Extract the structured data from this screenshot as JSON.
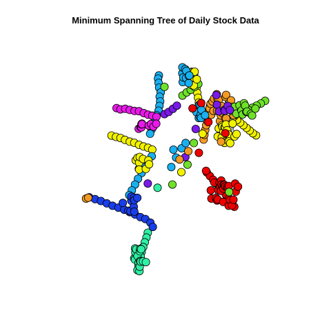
{
  "chart_data": {
    "type": "network",
    "title": "Minimum Spanning Tree of Daily Stock Data",
    "xlim": [
      0,
      100
    ],
    "ylim": [
      0,
      100
    ],
    "edge_color": "#000000",
    "node_stroke": "#000000",
    "palette": {
      "red": "#ee0000",
      "orange": "#f39a22",
      "yellow": "#f2f200",
      "green": "#6fe12a",
      "mint": "#2ff0a4",
      "cyan": "#1ab0f0",
      "blue": "#1a3ee8",
      "purple": "#7a1ae8",
      "magenta": "#e81ae8"
    },
    "branches": [
      {
        "name": "",
        "color": "cyan",
        "points": [
          [
            47.5,
            16
          ],
          [
            47.2,
            17.2
          ],
          [
            47.4,
            18.8
          ],
          [
            47.6,
            20.6
          ],
          [
            48.2,
            22.4
          ],
          [
            47.8,
            24
          ],
          [
            48,
            25.8
          ],
          [
            47.7,
            27.5
          ],
          [
            47.4,
            29.3
          ],
          [
            46.6,
            31
          ],
          [
            46,
            32.8
          ],
          [
            45.4,
            34.6
          ],
          [
            44.8,
            36.4
          ],
          [
            44.2,
            38
          ]
        ]
      },
      {
        "name": "",
        "color": "magenta",
        "points": [
          [
            31.5,
            28.3
          ],
          [
            33,
            28.8
          ],
          [
            34.8,
            28.6
          ],
          [
            36.5,
            29
          ],
          [
            38.3,
            29.4
          ],
          [
            40,
            29.5
          ],
          [
            41.8,
            30.2
          ],
          [
            43.4,
            30.8
          ],
          [
            45,
            31.2
          ],
          [
            46.6,
            31.6
          ]
        ]
      },
      {
        "name": "",
        "color": "purple",
        "points": [
          [
            49.6,
            30.6
          ],
          [
            51.2,
            29.8
          ],
          [
            52.8,
            28.6
          ],
          [
            54.3,
            27.4
          ]
        ]
      },
      {
        "name": "",
        "color": "yellow",
        "points": [
          [
            29.6,
            38.7
          ],
          [
            31.3,
            39.2
          ],
          [
            33,
            39.6
          ],
          [
            34.7,
            40.3
          ],
          [
            36.5,
            41
          ],
          [
            38.2,
            41.4
          ],
          [
            40,
            42.2
          ],
          [
            41.7,
            42.8
          ],
          [
            43.4,
            43.3
          ],
          [
            45,
            44
          ]
        ]
      },
      {
        "name": "",
        "color": "cyan",
        "points": [
          [
            44.8,
            46.5
          ],
          [
            43.5,
            48.6
          ],
          [
            42.2,
            50.7
          ],
          [
            41,
            52.8
          ],
          [
            39.6,
            55
          ],
          [
            38.5,
            57.2
          ],
          [
            37.3,
            59.4
          ],
          [
            36.3,
            61.2
          ]
        ]
      },
      {
        "name": "",
        "color": "blue",
        "points": [
          [
            21.2,
            62
          ],
          [
            23.4,
            62.7
          ],
          [
            25.6,
            63.4
          ],
          [
            27.8,
            64.3
          ],
          [
            30,
            65.2
          ],
          [
            32.2,
            65.9
          ],
          [
            34.4,
            66.7
          ],
          [
            36.5,
            67.6
          ],
          [
            38.5,
            68.5
          ],
          [
            40.5,
            69.5
          ],
          [
            42.4,
            70.2
          ],
          [
            44.3,
            71.6
          ],
          [
            45.2,
            73.2
          ]
        ]
      },
      {
        "name": "",
        "color": "mint",
        "points": [
          [
            43.3,
            75.4
          ],
          [
            42.8,
            77.2
          ],
          [
            42.2,
            79
          ],
          [
            41.6,
            80.8
          ],
          [
            41,
            82.6
          ],
          [
            40.6,
            84.3
          ],
          [
            40.2,
            86
          ],
          [
            39.8,
            87.7
          ],
          [
            39.4,
            89.5
          ]
        ]
      },
      {
        "name": "",
        "color": "orange",
        "points": [
          [
            20,
            62.5
          ],
          [
            20.8,
            62.2
          ]
        ]
      },
      {
        "name": "",
        "color": "red",
        "points": [
          [
            65.6,
            52.6
          ],
          [
            66.8,
            54
          ],
          [
            68,
            55.4
          ],
          [
            69.2,
            56.8
          ],
          [
            70.4,
            58.2
          ],
          [
            71.6,
            59.6
          ],
          [
            72.8,
            61
          ],
          [
            74,
            62.4
          ],
          [
            75.2,
            63.8
          ],
          [
            76,
            65.6
          ]
        ]
      },
      {
        "name": "",
        "color": "yellow",
        "points": [
          [
            84.2,
            38.6
          ],
          [
            83,
            37.8
          ],
          [
            81.8,
            36.8
          ],
          [
            80.6,
            35.8
          ],
          [
            79.4,
            34.8
          ],
          [
            78.2,
            33.8
          ],
          [
            77,
            32.8
          ],
          [
            75.8,
            31.6
          ]
        ]
      },
      {
        "name": "",
        "color": "green",
        "points": [
          [
            87.6,
            25.6
          ],
          [
            86,
            26.6
          ],
          [
            84.4,
            27.4
          ],
          [
            82.8,
            28.2
          ],
          [
            81.2,
            29
          ],
          [
            79.6,
            29.8
          ],
          [
            78,
            30.2
          ],
          [
            76.4,
            30.9
          ]
        ]
      },
      {
        "name": "",
        "color": "orange",
        "points": [
          [
            64.4,
            40.2
          ],
          [
            64.7,
            38.4
          ],
          [
            65,
            36.6
          ],
          [
            65.4,
            34.8
          ],
          [
            65.7,
            33
          ],
          [
            66.1,
            31.2
          ],
          [
            66.5,
            29.4
          ],
          [
            66.8,
            27.6
          ]
        ]
      },
      {
        "name": "",
        "color": "yellow",
        "points": [
          [
            60.8,
            15.4
          ],
          [
            61.1,
            17.2
          ],
          [
            61.4,
            19
          ],
          [
            61.7,
            20.8
          ],
          [
            62,
            22.6
          ],
          [
            62.3,
            24.4
          ],
          [
            62.6,
            26.2
          ],
          [
            62.9,
            28
          ]
        ]
      },
      {
        "name": "",
        "color": "green",
        "points": [
          [
            56.4,
            23.6
          ],
          [
            58,
            22.4
          ],
          [
            59.5,
            21.4
          ],
          [
            61,
            20.3
          ],
          [
            62.4,
            19.2
          ]
        ]
      }
    ],
    "clusters": [
      {
        "name": "",
        "color": "red",
        "center": [
          72.5,
          60.5
        ],
        "spread": [
          6,
          5.5
        ],
        "count": 28
      },
      {
        "name": "",
        "color": "orange",
        "center": [
          71.5,
          28
        ],
        "spread": [
          5,
          6
        ],
        "count": 24
      },
      {
        "name": "",
        "color": "yellow",
        "center": [
          74,
          38
        ],
        "spread": [
          5,
          4
        ],
        "count": 18
      },
      {
        "name": "",
        "color": "green",
        "center": [
          79,
          29
        ],
        "spread": [
          6,
          3
        ],
        "count": 14
      },
      {
        "name": "",
        "color": "purple",
        "center": [
          72,
          28
        ],
        "spread": [
          3,
          2
        ],
        "count": 6
      },
      {
        "name": "",
        "color": "cyan",
        "center": [
          63.5,
          29.5
        ],
        "spread": [
          3,
          3
        ],
        "count": 10
      },
      {
        "name": "",
        "color": "magenta",
        "center": [
          43,
          35
        ],
        "spread": [
          4,
          2
        ],
        "count": 10
      },
      {
        "name": "",
        "color": "yellow",
        "center": [
          41,
          49.2
        ],
        "spread": [
          3.5,
          2.5
        ],
        "count": 10
      },
      {
        "name": "",
        "color": "blue",
        "center": [
          37.6,
          64.6
        ],
        "spread": [
          4,
          3
        ],
        "count": 10
      },
      {
        "name": "",
        "color": "mint",
        "center": [
          40.2,
          85
        ],
        "spread": [
          2.5,
          5.5
        ],
        "count": 16
      },
      {
        "name": "",
        "color": "yellow",
        "center": [
          60.6,
          18
        ],
        "spread": [
          1.5,
          4
        ],
        "count": 8
      },
      {
        "name": "",
        "color": "cyan",
        "center": [
          56.8,
          16.5
        ],
        "spread": [
          2.5,
          4
        ],
        "count": 10
      }
    ],
    "singles": [
      {
        "color": "red",
        "xy": [
          63.5,
          26.4
        ]
      },
      {
        "color": "red",
        "xy": [
          60.2,
          28.4
        ]
      },
      {
        "color": "red",
        "xy": [
          72.6,
          37.8
        ]
      },
      {
        "color": "red",
        "xy": [
          66.2,
          33.6
        ]
      },
      {
        "color": "red",
        "xy": [
          62.6,
          45.2
        ]
      },
      {
        "color": "red",
        "xy": [
          65.3,
          52
        ]
      },
      {
        "color": "green",
        "xy": [
          58.3,
          49.7
        ]
      },
      {
        "color": "green",
        "xy": [
          60.7,
          41.5
        ]
      },
      {
        "color": "green",
        "xy": [
          74,
          60
        ]
      },
      {
        "color": "green",
        "xy": [
          49.6,
          20.3
        ]
      },
      {
        "color": "purple",
        "xy": [
          43.3,
          56.8
        ]
      },
      {
        "color": "purple",
        "xy": [
          57.5,
          46.8
        ]
      },
      {
        "color": "purple",
        "xy": [
          61.4,
          36.2
        ]
      },
      {
        "color": "purple",
        "xy": [
          69.2,
          23.4
        ]
      },
      {
        "color": "cyan",
        "xy": [
          54,
          47
        ]
      },
      {
        "color": "cyan",
        "xy": [
          53,
          44
        ]
      },
      {
        "color": "cyan",
        "xy": [
          56.1,
          43.5
        ]
      },
      {
        "color": "cyan",
        "xy": [
          52.2,
          50.6
        ]
      },
      {
        "color": "cyan",
        "xy": [
          57.6,
          41.5
        ]
      },
      {
        "color": "yellow",
        "xy": [
          56,
          52.5
        ]
      },
      {
        "color": "yellow",
        "xy": [
          64,
          38
        ]
      },
      {
        "color": "green",
        "xy": [
          52.6,
          57.2
        ]
      },
      {
        "color": "mint",
        "xy": [
          47,
          58.4
        ]
      },
      {
        "color": "orange",
        "xy": [
          55.3,
          47.7
        ]
      },
      {
        "color": "orange",
        "xy": [
          58.6,
          44.6
        ]
      },
      {
        "color": "orange",
        "xy": [
          71,
          41
        ]
      }
    ]
  }
}
